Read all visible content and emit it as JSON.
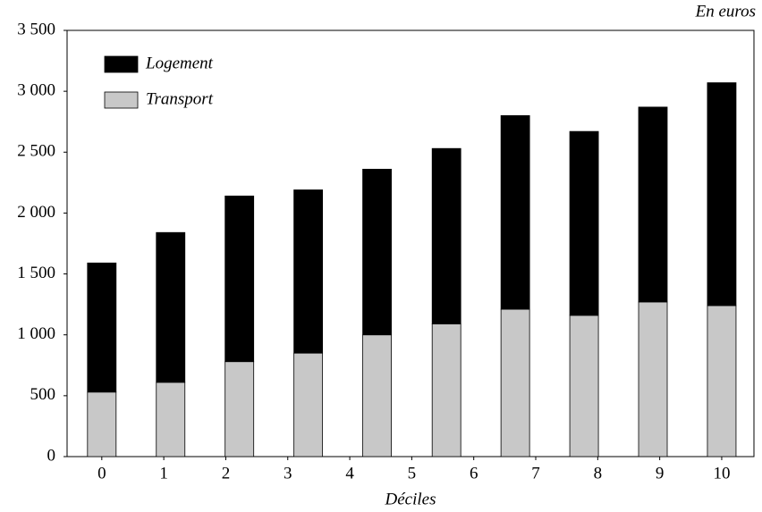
{
  "chart_data": {
    "type": "stacked_bar",
    "unit_label": "En euros",
    "x_label": "Déciles",
    "x": [
      0,
      1.11,
      2.22,
      3.33,
      4.44,
      5.56,
      6.67,
      7.78,
      8.89,
      10
    ],
    "series": [
      {
        "name": "Transport",
        "color": "#c8c8c8",
        "values": [
          530,
          610,
          780,
          850,
          1000,
          1090,
          1210,
          1160,
          1270,
          1240
        ]
      },
      {
        "name": "Logement",
        "color": "#000000",
        "values": [
          1060,
          1230,
          1360,
          1340,
          1360,
          1440,
          1590,
          1510,
          1600,
          1830
        ]
      }
    ],
    "xlim": [
      -0.56,
      10.52
    ],
    "xticks": [
      0,
      1,
      2,
      3,
      4,
      5,
      6,
      7,
      8,
      9,
      10
    ],
    "ylim": [
      0,
      3500
    ],
    "yticks": [
      0,
      500,
      {
        "value": 1000,
        "label": "1 000"
      },
      {
        "value": 1500,
        "label": "1 500"
      },
      {
        "value": 2000,
        "label": "2 000"
      },
      {
        "value": 2500,
        "label": "2 500"
      },
      {
        "value": 3000,
        "label": "3 000"
      },
      {
        "value": 3500,
        "label": "3 500"
      }
    ],
    "legend": "upper left"
  }
}
